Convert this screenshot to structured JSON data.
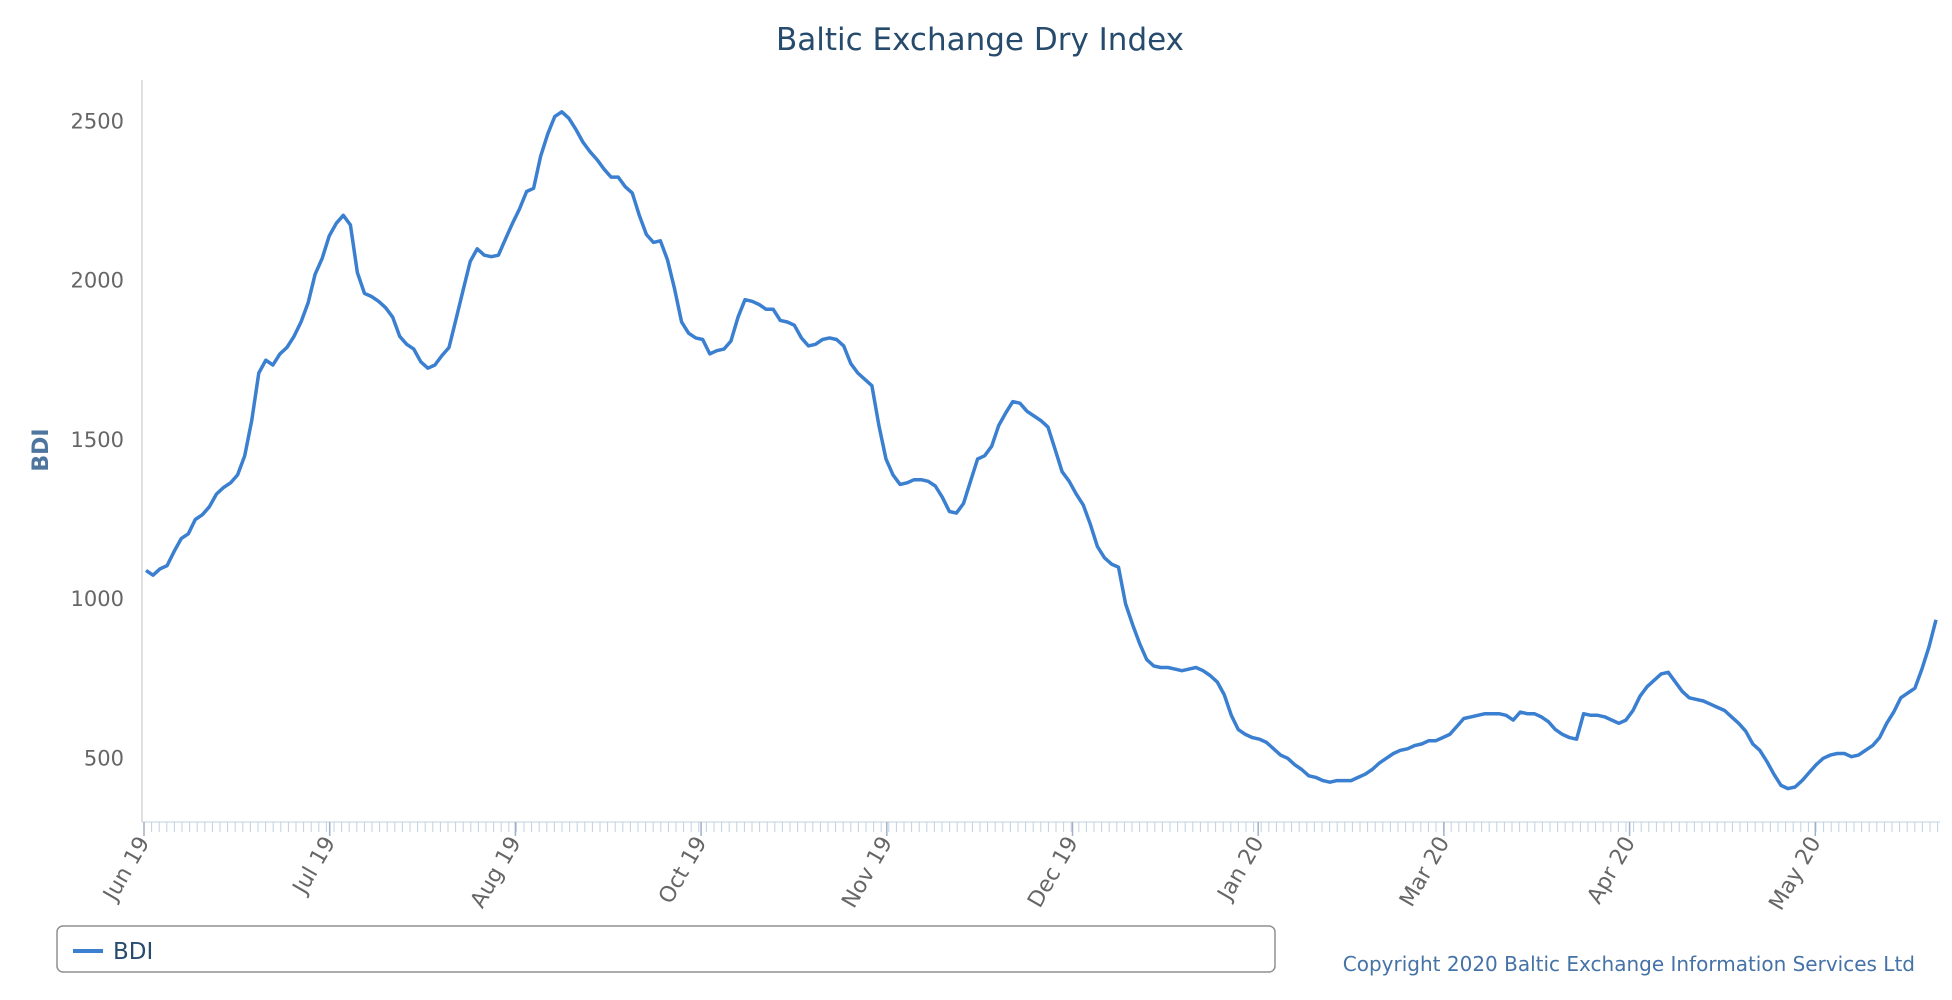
{
  "chart_data": {
    "type": "line",
    "title": "Baltic Exchange Dry Index",
    "xlabel": "",
    "ylabel": "BDI",
    "ylim": [
      300,
      2630
    ],
    "yticks": [
      "500",
      "1000",
      "1500",
      "2000",
      "2500"
    ],
    "xticks": [
      "Jun 19",
      "Jul 19",
      "Aug 19",
      "Oct 19",
      "Nov 19",
      "Dec 19",
      "Jan 20",
      "Mar 20",
      "Apr 20",
      "May 20"
    ],
    "legend": "bottom-left",
    "grid": false,
    "series": [
      {
        "name": "BDI",
        "color": "#3a7fd0",
        "values": [
          1090,
          1075,
          1095,
          1105,
          1150,
          1190,
          1205,
          1250,
          1265,
          1290,
          1330,
          1350,
          1365,
          1390,
          1450,
          1560,
          1710,
          1750,
          1735,
          1770,
          1790,
          1825,
          1870,
          1930,
          2020,
          2070,
          2140,
          2180,
          2205,
          2175,
          2025,
          1960,
          1950,
          1935,
          1915,
          1885,
          1825,
          1800,
          1785,
          1745,
          1725,
          1735,
          1765,
          1790,
          1880,
          1970,
          2060,
          2100,
          2080,
          2075,
          2080,
          2130,
          2180,
          2225,
          2280,
          2290,
          2390,
          2460,
          2515,
          2530,
          2510,
          2475,
          2435,
          2405,
          2380,
          2350,
          2325,
          2325,
          2295,
          2275,
          2205,
          2145,
          2120,
          2125,
          2065,
          1975,
          1870,
          1835,
          1820,
          1815,
          1770,
          1780,
          1785,
          1810,
          1885,
          1940,
          1935,
          1925,
          1910,
          1910,
          1875,
          1870,
          1860,
          1820,
          1795,
          1800,
          1815,
          1820,
          1815,
          1795,
          1740,
          1710,
          1690,
          1670,
          1545,
          1440,
          1390,
          1360,
          1365,
          1375,
          1375,
          1370,
          1355,
          1320,
          1275,
          1270,
          1300,
          1370,
          1440,
          1450,
          1480,
          1545,
          1585,
          1620,
          1615,
          1590,
          1575,
          1560,
          1540,
          1470,
          1400,
          1370,
          1330,
          1295,
          1235,
          1165,
          1130,
          1110,
          1100,
          985,
          920,
          860,
          810,
          790,
          785,
          785,
          780,
          775,
          780,
          785,
          775,
          760,
          740,
          700,
          635,
          590,
          575,
          565,
          560,
          550,
          530,
          510,
          500,
          480,
          465,
          445,
          440,
          430,
          425,
          430,
          430,
          430,
          440,
          450,
          465,
          485,
          500,
          515,
          525,
          530,
          540,
          545,
          555,
          555,
          565,
          575,
          600,
          625,
          630,
          635,
          640,
          640,
          640,
          635,
          620,
          645,
          640,
          640,
          630,
          615,
          590,
          575,
          565,
          560,
          640,
          635,
          635,
          630,
          620,
          610,
          620,
          650,
          695,
          725,
          745,
          765,
          770,
          740,
          710,
          690,
          685,
          680,
          670,
          660,
          650,
          630,
          610,
          585,
          545,
          525,
          490,
          450,
          415,
          405,
          410,
          430,
          455,
          480,
          500,
          510,
          515,
          515,
          505,
          510,
          525,
          540,
          565,
          610,
          645,
          690,
          705,
          720,
          780,
          850,
          935
        ]
      }
    ],
    "legend_label": "BDI",
    "credit": "Copyright 2020 Baltic Exchange Information Services Ltd"
  }
}
